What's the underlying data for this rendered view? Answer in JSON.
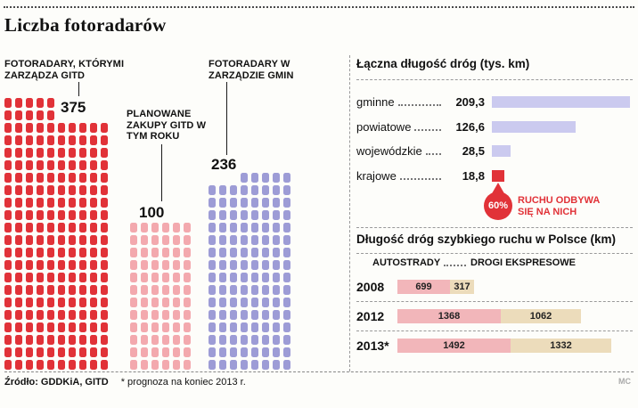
{
  "title": "Liczba fotoradarów",
  "colors": {
    "red": "#e13238",
    "pink": "#f3a9ae",
    "purple": "#9d9cd6",
    "lavender": "#cbcaef",
    "bar_pink": "#f2b6ba",
    "bar_beige": "#ecdcbb"
  },
  "icons": {
    "speed_camera": "css-rounded-rect",
    "traffic_drop": "css-teardrop"
  },
  "pictograms": [
    {
      "label": "FOTORADARY, KTÓRYMI ZARZĄDZA GITD",
      "value": "375"
    },
    {
      "label": "PLANOWANE ZAKUPY GITD W TYM ROKU",
      "value": "100"
    },
    {
      "label": "FOTORADARY W ZARZĄDZIE GMIN",
      "value": "236"
    }
  ],
  "roads": {
    "title": "Łączna długość dróg (tys. km)",
    "rows": [
      {
        "label": "gminne",
        "value": "209,3",
        "km": 209.3,
        "highlight": false
      },
      {
        "label": "powiatowe",
        "value": "126,6",
        "km": 126.6,
        "highlight": false
      },
      {
        "label": "wojewódzkie",
        "value": "28,5",
        "km": 28.5,
        "highlight": false
      },
      {
        "label": "krajowe",
        "value": "18,8",
        "km": 18.8,
        "highlight": true
      }
    ],
    "callout_pct": "60%",
    "callout_text": "RUCHU ODBYWA SIĘ NA NICH"
  },
  "highways": {
    "title": "Długość dróg szybkiego ruchu w Polsce (km)",
    "legend": [
      "AUTOSTRADY",
      "DROGI EKSPRESOWE"
    ],
    "rows": [
      {
        "year": "2008",
        "autostrady": 699,
        "ekspresowe": 317
      },
      {
        "year": "2012",
        "autostrady": 1368,
        "ekspresowe": 1062
      },
      {
        "year": "2013*",
        "autostrady": 1492,
        "ekspresowe": 1332
      }
    ]
  },
  "footer": {
    "source": "Źródło: GDDKiA, GITD",
    "note": "* prognoza na koniec 2013 r.",
    "credit": "MC"
  },
  "chart_data": [
    {
      "type": "bar",
      "style": "pictogram",
      "title": "Liczba fotoradarów",
      "categories": [
        "FOTORADARY, KTÓRYMI ZARZĄDZA GITD",
        "PLANOWANE ZAKUPY GITD W TYM ROKU",
        "FOTORADARY W ZARZĄDZIE GMIN"
      ],
      "values": [
        375,
        100,
        236
      ]
    },
    {
      "type": "bar",
      "orientation": "horizontal",
      "title": "Łączna długość dróg (tys. km)",
      "categories": [
        "gminne",
        "powiatowe",
        "wojewódzkie",
        "krajowe"
      ],
      "values": [
        209.3,
        126.6,
        28.5,
        18.8
      ],
      "annotation": "60% RUCHU ODBYWA SIĘ NA NICH (dotyczy dróg krajowych)"
    },
    {
      "type": "bar",
      "orientation": "horizontal",
      "title": "Długość dróg szybkiego ruchu w Polsce (km)",
      "categories": [
        "2008",
        "2012",
        "2013*"
      ],
      "series": [
        {
          "name": "AUTOSTRADY",
          "values": [
            699,
            1368,
            1492
          ]
        },
        {
          "name": "DROGI EKSPRESOWE",
          "values": [
            317,
            1062,
            1332
          ]
        }
      ]
    }
  ]
}
